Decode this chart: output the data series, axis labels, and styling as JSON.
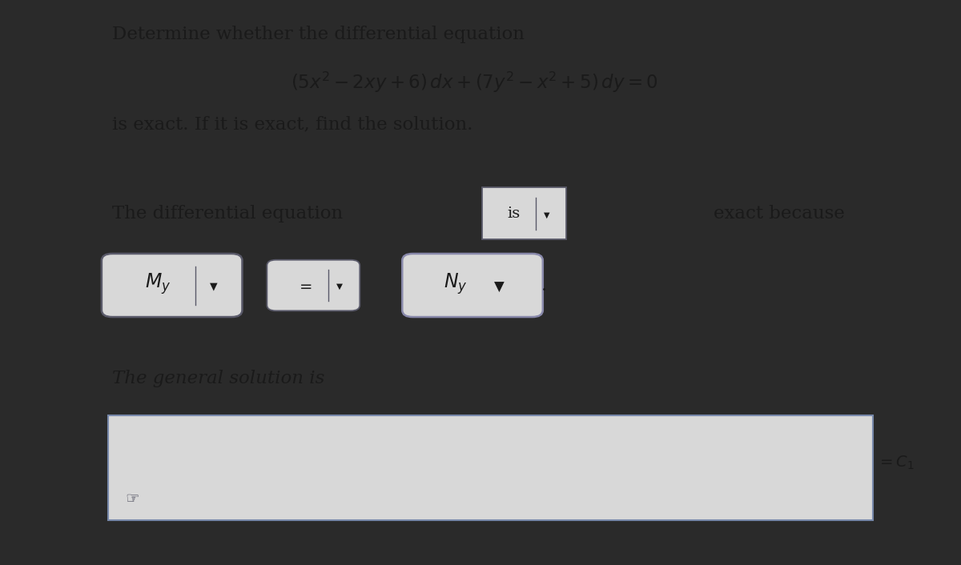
{
  "bg_color_left": "#2a2a2a",
  "bg_color_panel": "#c8c8c8",
  "panel_color": "#d8d8d8",
  "title_line1": "Determine whether the differential equation",
  "title_line2": "$(5x^2 - 2xy + 6)\\, dx + (7y^2 - x^2 + 5)\\, dy = 0$",
  "title_line3": "is exact. If it is exact, find the solution.",
  "label1": "The differential equation",
  "dropdown1_text": "is",
  "label2": "exact because",
  "dropdown_My": "$M_y$",
  "dropdown_eq": "$=$",
  "dropdown_Ny": "$N_y$",
  "label3": "The general solution is",
  "equals_c": "$= C_1$",
  "text_color": "#1a1a1a",
  "box_fill": "#d8d8d8",
  "box_border_dark": "#5a5a6a",
  "box_border_light": "#8888aa",
  "sol_box_border": "#7788aa"
}
